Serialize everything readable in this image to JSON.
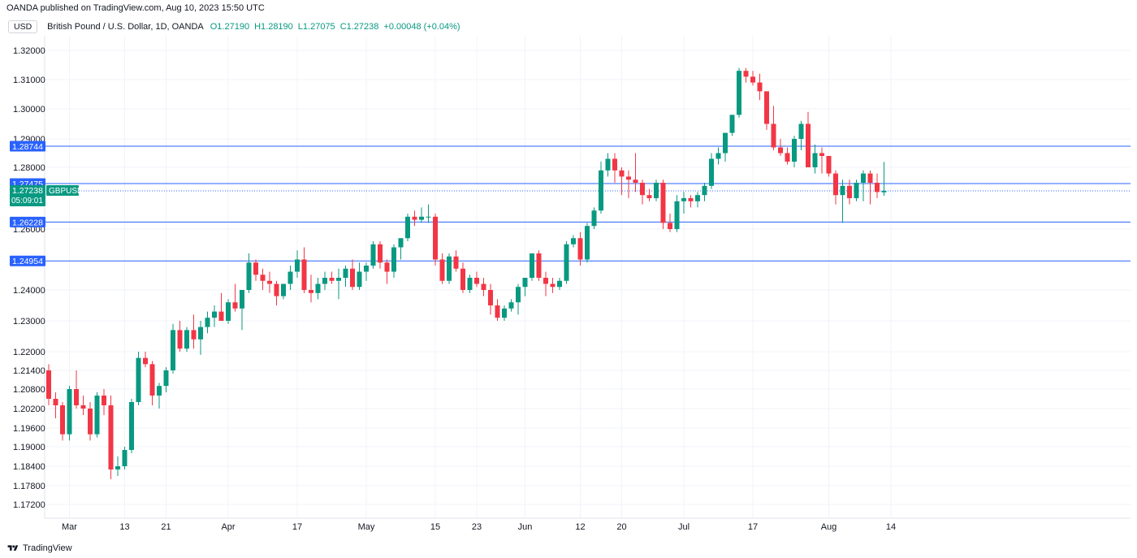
{
  "header": {
    "published": "OANDA published on TradingView.com, Aug 10, 2023 15:50 UTC",
    "currency": "USD",
    "symbol_title": "British Pound / U.S. Dollar, 1D, OANDA",
    "open": "O1.27190",
    "high": "H1.28190",
    "low": "L1.27075",
    "close": "C1.27238",
    "change": "+0.00048 (+0.04%)"
  },
  "footer": {
    "brand": "TradingView"
  },
  "colors": {
    "up": "#089981",
    "down": "#f23645",
    "line": "#2962ff",
    "grid": "#f0f3fa"
  },
  "chart_data": {
    "type": "candlestick",
    "symbol": "GBPUSD",
    "interval": "1D",
    "y_ticks": [
      "1.32000",
      "1.31000",
      "1.30000",
      "1.29000",
      "1.28000",
      "1.26000",
      "1.24000",
      "1.23000",
      "1.22000",
      "1.21400",
      "1.20800",
      "1.20200",
      "1.19600",
      "1.19000",
      "1.18400",
      "1.17800",
      "1.17200"
    ],
    "x_ticks": [
      {
        "label": "Mar",
        "idx": 3
      },
      {
        "label": "13",
        "idx": 11
      },
      {
        "label": "21",
        "idx": 17
      },
      {
        "label": "Apr",
        "idx": 26
      },
      {
        "label": "17",
        "idx": 36
      },
      {
        "label": "May",
        "idx": 46
      },
      {
        "label": "15",
        "idx": 56
      },
      {
        "label": "23",
        "idx": 62
      },
      {
        "label": "Jun",
        "idx": 69
      },
      {
        "label": "12",
        "idx": 77
      },
      {
        "label": "20",
        "idx": 83
      },
      {
        "label": "Jul",
        "idx": 92
      },
      {
        "label": "17",
        "idx": 102
      },
      {
        "label": "Aug",
        "idx": 113
      },
      {
        "label": "14",
        "idx": 122
      }
    ],
    "horizontal_lines": [
      "1.28744",
      "1.27475",
      "1.26228",
      "1.24954"
    ],
    "last_price": "1.27238",
    "countdown": "05:09:01",
    "candles": [
      [
        1.214,
        1.216,
        1.203,
        1.205
      ],
      [
        1.205,
        1.207,
        1.199,
        1.203
      ],
      [
        1.203,
        1.204,
        1.192,
        1.194
      ],
      [
        1.194,
        1.209,
        1.192,
        1.208
      ],
      [
        1.208,
        1.214,
        1.202,
        1.203
      ],
      [
        1.203,
        1.206,
        1.2,
        1.202
      ],
      [
        1.202,
        1.204,
        1.192,
        1.194
      ],
      [
        1.194,
        1.207,
        1.193,
        1.206
      ],
      [
        1.206,
        1.208,
        1.2,
        1.203
      ],
      [
        1.203,
        1.206,
        1.18,
        1.183
      ],
      [
        1.183,
        1.187,
        1.181,
        1.184
      ],
      [
        1.184,
        1.19,
        1.183,
        1.189
      ],
      [
        1.189,
        1.205,
        1.188,
        1.204
      ],
      [
        1.204,
        1.22,
        1.203,
        1.218
      ],
      [
        1.218,
        1.22,
        1.215,
        1.216
      ],
      [
        1.216,
        1.217,
        1.203,
        1.206
      ],
      [
        1.206,
        1.21,
        1.202,
        1.209
      ],
      [
        1.209,
        1.215,
        1.207,
        1.214
      ],
      [
        1.214,
        1.229,
        1.213,
        1.227
      ],
      [
        1.227,
        1.23,
        1.22,
        1.221
      ],
      [
        1.221,
        1.228,
        1.22,
        1.227
      ],
      [
        1.227,
        1.232,
        1.221,
        1.224
      ],
      [
        1.224,
        1.23,
        1.219,
        1.228
      ],
      [
        1.228,
        1.233,
        1.226,
        1.231
      ],
      [
        1.231,
        1.235,
        1.228,
        1.233
      ],
      [
        1.233,
        1.239,
        1.23,
        1.23
      ],
      [
        1.23,
        1.237,
        1.229,
        1.236
      ],
      [
        1.236,
        1.242,
        1.233,
        1.234
      ],
      [
        1.234,
        1.24,
        1.227,
        1.24
      ],
      [
        1.24,
        1.252,
        1.239,
        1.249
      ],
      [
        1.249,
        1.25,
        1.243,
        1.245
      ],
      [
        1.245,
        1.247,
        1.24,
        1.243
      ],
      [
        1.243,
        1.246,
        1.239,
        1.242
      ],
      [
        1.242,
        1.243,
        1.235,
        1.238
      ],
      [
        1.238,
        1.242,
        1.237,
        1.242
      ],
      [
        1.242,
        1.248,
        1.24,
        1.246
      ],
      [
        1.246,
        1.253,
        1.244,
        1.25
      ],
      [
        1.25,
        1.254,
        1.239,
        1.24
      ],
      [
        1.24,
        1.245,
        1.236,
        1.239
      ],
      [
        1.239,
        1.244,
        1.237,
        1.242
      ],
      [
        1.242,
        1.246,
        1.24,
        1.244
      ],
      [
        1.244,
        1.246,
        1.242,
        1.243
      ],
      [
        1.243,
        1.247,
        1.237,
        1.244
      ],
      [
        1.244,
        1.248,
        1.241,
        1.247
      ],
      [
        1.247,
        1.25,
        1.24,
        1.241
      ],
      [
        1.241,
        1.249,
        1.24,
        1.246
      ],
      [
        1.246,
        1.249,
        1.243,
        1.248
      ],
      [
        1.248,
        1.256,
        1.247,
        1.255
      ],
      [
        1.255,
        1.256,
        1.247,
        1.249
      ],
      [
        1.249,
        1.25,
        1.242,
        1.246
      ],
      [
        1.246,
        1.255,
        1.244,
        1.254
      ],
      [
        1.254,
        1.257,
        1.25,
        1.257
      ],
      [
        1.257,
        1.265,
        1.256,
        1.264
      ],
      [
        1.264,
        1.266,
        1.261,
        1.263
      ],
      [
        1.263,
        1.267,
        1.262,
        1.264
      ],
      [
        1.264,
        1.268,
        1.262,
        1.264
      ],
      [
        1.264,
        1.265,
        1.248,
        1.25
      ],
      [
        1.25,
        1.252,
        1.242,
        1.243
      ],
      [
        1.243,
        1.252,
        1.242,
        1.251
      ],
      [
        1.251,
        1.253,
        1.246,
        1.247
      ],
      [
        1.247,
        1.249,
        1.239,
        1.24
      ],
      [
        1.24,
        1.245,
        1.239,
        1.244
      ],
      [
        1.244,
        1.246,
        1.241,
        1.242
      ],
      [
        1.242,
        1.244,
        1.238,
        1.24
      ],
      [
        1.24,
        1.242,
        1.232,
        1.235
      ],
      [
        1.235,
        1.237,
        1.23,
        1.231
      ],
      [
        1.231,
        1.235,
        1.23,
        1.234
      ],
      [
        1.234,
        1.237,
        1.233,
        1.236
      ],
      [
        1.236,
        1.242,
        1.232,
        1.241
      ],
      [
        1.241,
        1.244,
        1.238,
        1.244
      ],
      [
        1.244,
        1.252,
        1.243,
        1.252
      ],
      [
        1.252,
        1.253,
        1.243,
        1.244
      ],
      [
        1.244,
        1.246,
        1.238,
        1.242
      ],
      [
        1.242,
        1.244,
        1.239,
        1.241
      ],
      [
        1.241,
        1.244,
        1.24,
        1.243
      ],
      [
        1.243,
        1.256,
        1.242,
        1.255
      ],
      [
        1.255,
        1.258,
        1.254,
        1.257
      ],
      [
        1.257,
        1.259,
        1.248,
        1.25
      ],
      [
        1.25,
        1.262,
        1.249,
        1.261
      ],
      [
        1.261,
        1.267,
        1.26,
        1.266
      ],
      [
        1.266,
        1.282,
        1.265,
        1.279
      ],
      [
        1.279,
        1.285,
        1.277,
        1.283
      ],
      [
        1.283,
        1.285,
        1.275,
        1.279
      ],
      [
        1.279,
        1.28,
        1.271,
        1.277
      ],
      [
        1.277,
        1.279,
        1.27,
        1.276
      ],
      [
        1.276,
        1.285,
        1.272,
        1.275
      ],
      [
        1.275,
        1.276,
        1.268,
        1.271
      ],
      [
        1.271,
        1.273,
        1.269,
        1.27
      ],
      [
        1.27,
        1.276,
        1.269,
        1.275
      ],
      [
        1.275,
        1.276,
        1.26,
        1.262
      ],
      [
        1.262,
        1.265,
        1.259,
        1.26
      ],
      [
        1.26,
        1.271,
        1.259,
        1.269
      ],
      [
        1.269,
        1.272,
        1.265,
        1.27
      ],
      [
        1.27,
        1.271,
        1.267,
        1.269
      ],
      [
        1.269,
        1.272,
        1.267,
        1.271
      ],
      [
        1.271,
        1.275,
        1.269,
        1.274
      ],
      [
        1.274,
        1.285,
        1.273,
        1.283
      ],
      [
        1.283,
        1.287,
        1.281,
        1.285
      ],
      [
        1.285,
        1.292,
        1.282,
        1.292
      ],
      [
        1.292,
        1.298,
        1.291,
        1.298
      ],
      [
        1.298,
        1.314,
        1.297,
        1.313
      ],
      [
        1.313,
        1.314,
        1.309,
        1.311
      ],
      [
        1.311,
        1.313,
        1.308,
        1.309
      ],
      [
        1.309,
        1.312,
        1.303,
        1.306
      ],
      [
        1.306,
        1.305,
        1.293,
        1.295
      ],
      [
        1.295,
        1.301,
        1.286,
        1.287
      ],
      [
        1.287,
        1.29,
        1.284,
        1.285
      ],
      [
        1.285,
        1.287,
        1.281,
        1.282
      ],
      [
        1.282,
        1.291,
        1.28,
        1.29
      ],
      [
        1.29,
        1.296,
        1.286,
        1.295
      ],
      [
        1.295,
        1.299,
        1.281,
        1.28
      ],
      [
        1.28,
        1.288,
        1.278,
        1.285
      ],
      [
        1.285,
        1.287,
        1.278,
        1.284
      ],
      [
        1.284,
        1.284,
        1.277,
        1.278
      ],
      [
        1.278,
        1.279,
        1.268,
        1.271
      ],
      [
        1.271,
        1.276,
        1.262,
        1.274
      ],
      [
        1.274,
        1.276,
        1.268,
        1.27
      ],
      [
        1.27,
        1.276,
        1.269,
        1.275
      ],
      [
        1.275,
        1.279,
        1.269,
        1.278
      ],
      [
        1.278,
        1.279,
        1.268,
        1.275
      ],
      [
        1.275,
        1.278,
        1.27,
        1.272
      ],
      [
        1.2719,
        1.2819,
        1.27075,
        1.27238
      ]
    ]
  }
}
